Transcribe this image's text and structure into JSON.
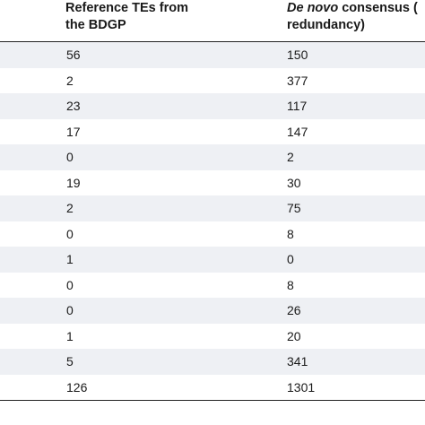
{
  "table": {
    "headers": {
      "col1_line1": "Reference TEs from",
      "col1_line2": "the BDGP",
      "col2_italic": "De novo",
      "col2_rest": " consensus (",
      "col2_line2": "redundancy)"
    },
    "rows": [
      [
        "56",
        "150"
      ],
      [
        "2",
        "377"
      ],
      [
        "23",
        "117"
      ],
      [
        "17",
        "147"
      ],
      [
        "0",
        "2"
      ],
      [
        "19",
        "30"
      ],
      [
        "2",
        "75"
      ],
      [
        "0",
        "8"
      ],
      [
        "1",
        "0"
      ],
      [
        "0",
        "8"
      ],
      [
        "0",
        "26"
      ],
      [
        "1",
        "20"
      ],
      [
        "5",
        "341"
      ],
      [
        "126",
        "1301"
      ]
    ]
  }
}
